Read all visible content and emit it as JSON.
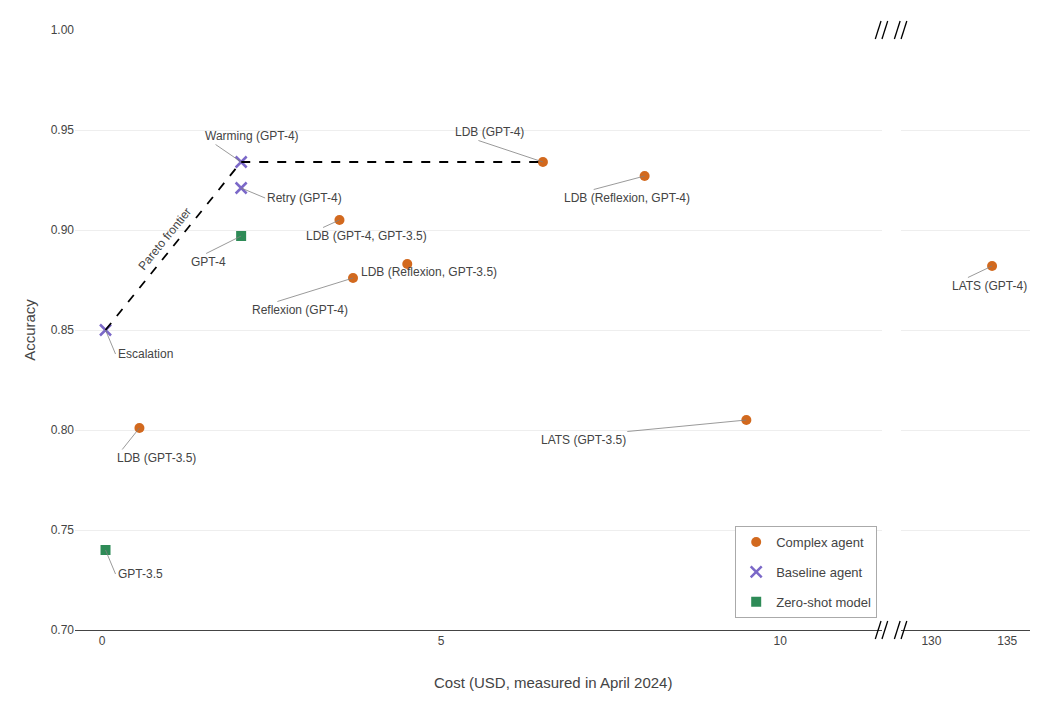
{
  "chart_data": {
    "type": "scatter",
    "xlabel": "Cost (USD, measured in April 2024)",
    "ylabel": "Accuracy",
    "xlim": [
      -0.4,
      11.5
    ],
    "xticks": [
      0,
      5,
      10
    ],
    "x2lim": [
      128.0,
      136.5
    ],
    "x2ticks": [
      130,
      135
    ],
    "ylim": [
      0.7,
      1.0
    ],
    "yticks": [
      {
        "value": 0.7,
        "label": "0.70"
      },
      0.75,
      {
        "value": 0.8,
        "label": "0.80"
      },
      0.85,
      {
        "value": 0.9,
        "label": "0.90"
      },
      0.95,
      {
        "value": 1.0,
        "label": "1.00"
      }
    ],
    "grid": true,
    "legend": "lower right",
    "series": [
      {
        "name": "Complex agent",
        "type": "scatter",
        "marker": "circle",
        "color": "#d2691e",
        "x": [
          6.5,
          8.0,
          3.5,
          4.5,
          3.7,
          0.55,
          9.5,
          134.0
        ],
        "values": [
          0.934,
          0.927,
          0.905,
          0.883,
          0.876,
          0.801,
          0.805,
          0.882
        ],
        "labels": [
          "LDB (GPT-4)",
          "LDB (Reflexion, GPT-4)",
          "LDB (GPT-4, GPT-3.5)",
          "LDB (Reflexion, GPT-3.5)",
          "Reflexion (GPT-4)",
          "LDB (GPT-3.5)",
          "LATS (GPT-3.5)",
          "LATS (GPT-4)"
        ]
      },
      {
        "name": "Baseline agent",
        "type": "scatter",
        "marker": "x",
        "color": "#7b68c8",
        "x": [
          2.05,
          2.05,
          0.05
        ],
        "values": [
          0.934,
          0.921,
          0.85
        ],
        "labels": [
          "Warming (GPT-4)",
          "Retry (GPT-4)",
          "Escalation"
        ]
      },
      {
        "name": "Zero-shot model",
        "type": "scatter",
        "marker": "square",
        "color": "#2e8b57",
        "x": [
          2.05,
          0.05
        ],
        "values": [
          0.897,
          0.74
        ],
        "labels": [
          "GPT-4",
          "GPT-3.5"
        ]
      },
      {
        "name": "Pareto frontier",
        "type": "line",
        "line_style": "dashed",
        "color": "#000000",
        "x": [
          0.05,
          2.05,
          6.5
        ],
        "values": [
          0.85,
          0.934,
          0.934
        ]
      }
    ]
  }
}
